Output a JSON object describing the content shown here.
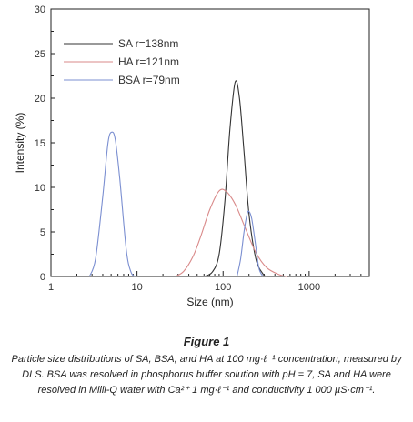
{
  "chart_data": {
    "type": "line",
    "xlabel": "Size (nm)",
    "ylabel": "Intensity (%)",
    "xscale": "log",
    "xlim": [
      1,
      5000
    ],
    "ylim": [
      0,
      30
    ],
    "xticks": [
      {
        "v": 1,
        "label": "1"
      },
      {
        "v": 10,
        "label": "10"
      },
      {
        "v": 100,
        "label": "100"
      },
      {
        "v": 1000,
        "label": "1000"
      }
    ],
    "yticks": [
      0,
      5,
      10,
      15,
      20,
      25,
      30
    ],
    "legend": "top-left",
    "series": [
      {
        "name": "SA r=138nm",
        "color": "#333333",
        "x": [
          60,
          75,
          90,
          105,
          120,
          138,
          155,
          175,
          200,
          240,
          290,
          320
        ],
        "y": [
          0,
          0.5,
          2.5,
          8.5,
          16.5,
          21.8,
          20,
          14,
          7,
          2,
          0.3,
          0
        ]
      },
      {
        "name": "HA r=121nm",
        "color": "#d98a8a",
        "x": [
          28,
          35,
          45,
          55,
          70,
          90,
          110,
          140,
          180,
          240,
          320,
          450,
          550
        ],
        "y": [
          0,
          0.6,
          2.3,
          4.5,
          7.5,
          9.6,
          9.5,
          8,
          5.5,
          2.7,
          1,
          0.2,
          0
        ]
      },
      {
        "name": "BSA r=79nm",
        "color": "#7b8fd1",
        "x": [
          2.8,
          3.3,
          4,
          4.6,
          5.1,
          5.6,
          6.3,
          7.5,
          8.5,
          9.5
        ],
        "y": [
          0,
          2,
          9,
          15,
          16.2,
          15.3,
          11,
          3,
          0.5,
          0
        ]
      },
      {
        "name": "",
        "color": "#7b8fd1",
        "x": [
          145,
          160,
          175,
          190,
          200,
          215,
          235,
          260,
          290
        ],
        "y": [
          0,
          2,
          5,
          7,
          7.3,
          6.5,
          4,
          1,
          0
        ]
      }
    ]
  },
  "caption": {
    "title": "Figure 1",
    "text": "Particle size distributions of SA, BSA, and HA at 100 mg·ℓ⁻¹ concentration, measured by DLS. BSA was resolved in phosphorus buffer solution with pH = 7, SA and HA were resolved in Milli-Q water with Ca²⁺ 1 mg·ℓ⁻¹ and conductivity 1 000 µS·cm⁻¹."
  }
}
